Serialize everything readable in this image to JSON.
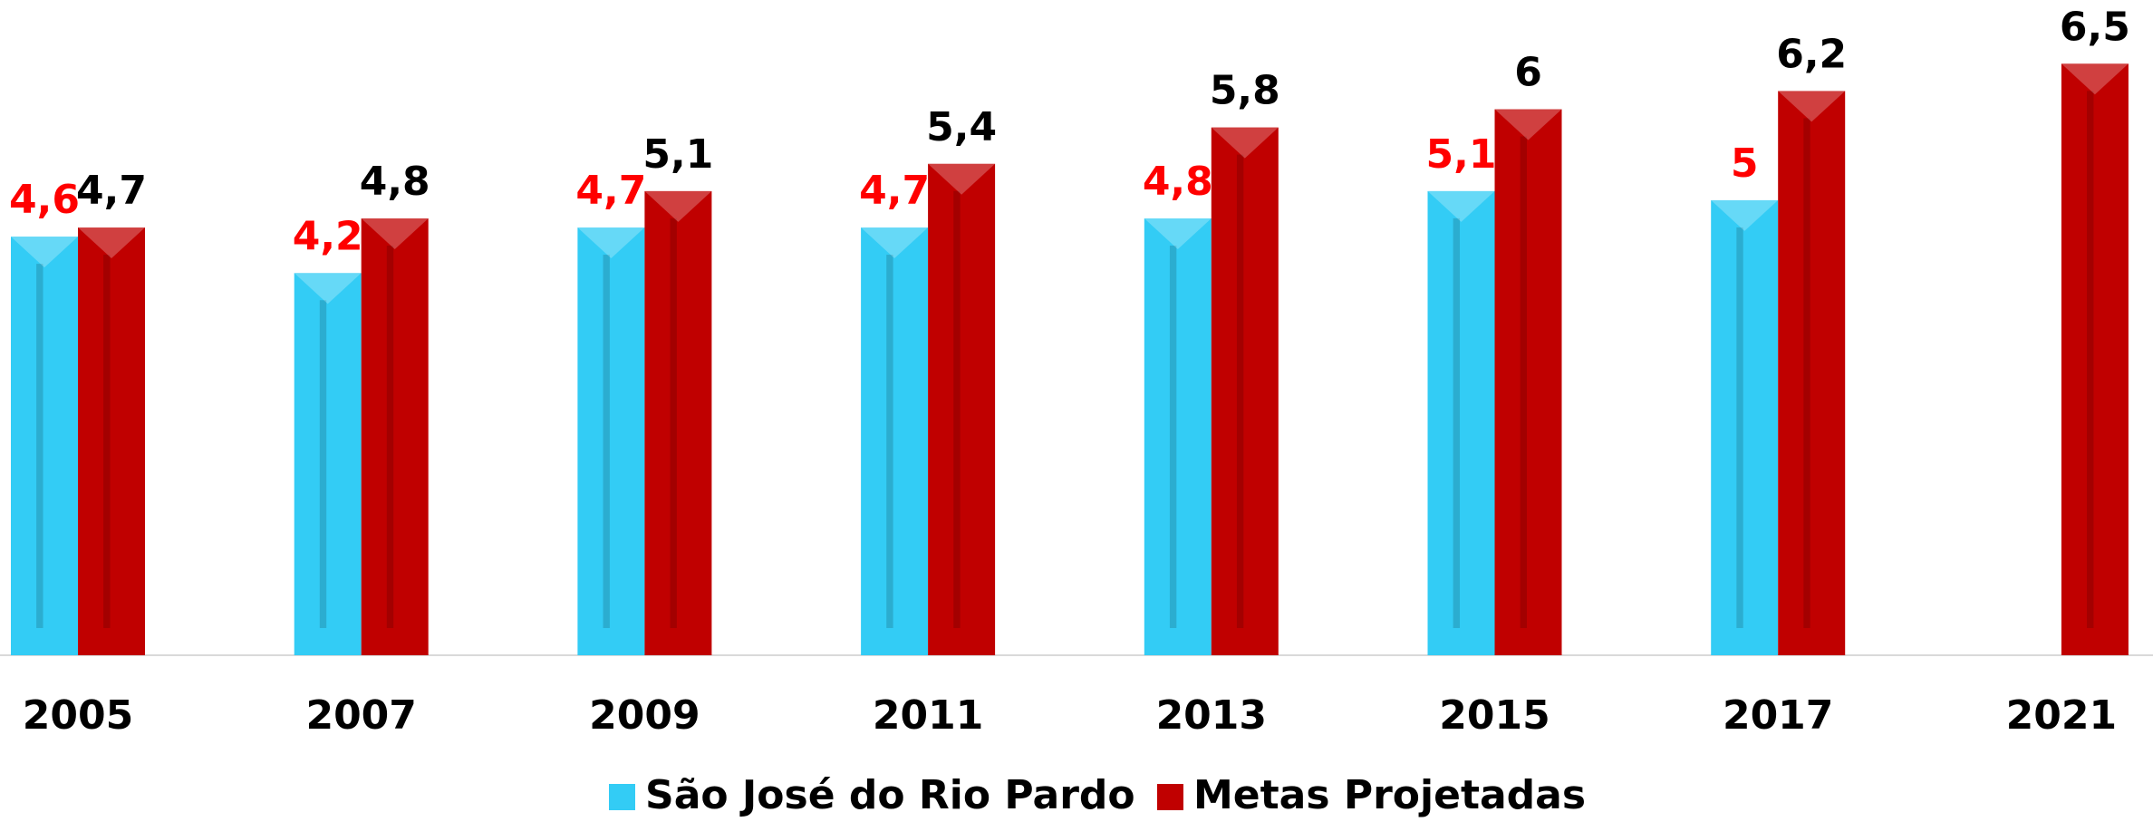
{
  "chart_data": {
    "type": "bar",
    "categories": [
      "2005",
      "2007",
      "2009",
      "2011",
      "2013",
      "2015",
      "2017",
      "2021"
    ],
    "series": [
      {
        "name": "São José do Rio Pardo",
        "color": "#33ccf5",
        "label_color": "#ff0000",
        "values": [
          4.6,
          4.2,
          4.7,
          4.7,
          4.8,
          5.1,
          5,
          null
        ],
        "value_labels": [
          "4,6",
          "4,2",
          "4,7",
          "4,7",
          "4,8",
          "5,1",
          "5",
          null
        ]
      },
      {
        "name": "Metas Projetadas",
        "color": "#c00000",
        "label_color": "#000000",
        "values": [
          4.7,
          4.8,
          5.1,
          5.4,
          5.8,
          6,
          6.2,
          6.5
        ],
        "value_labels": [
          "4,7",
          "4,8",
          "5,1",
          "5,4",
          "5,8",
          "6",
          "6,2",
          "6,5"
        ]
      }
    ],
    "ylim": [
      0,
      7.2
    ],
    "grid": false,
    "legend": "bottom"
  }
}
